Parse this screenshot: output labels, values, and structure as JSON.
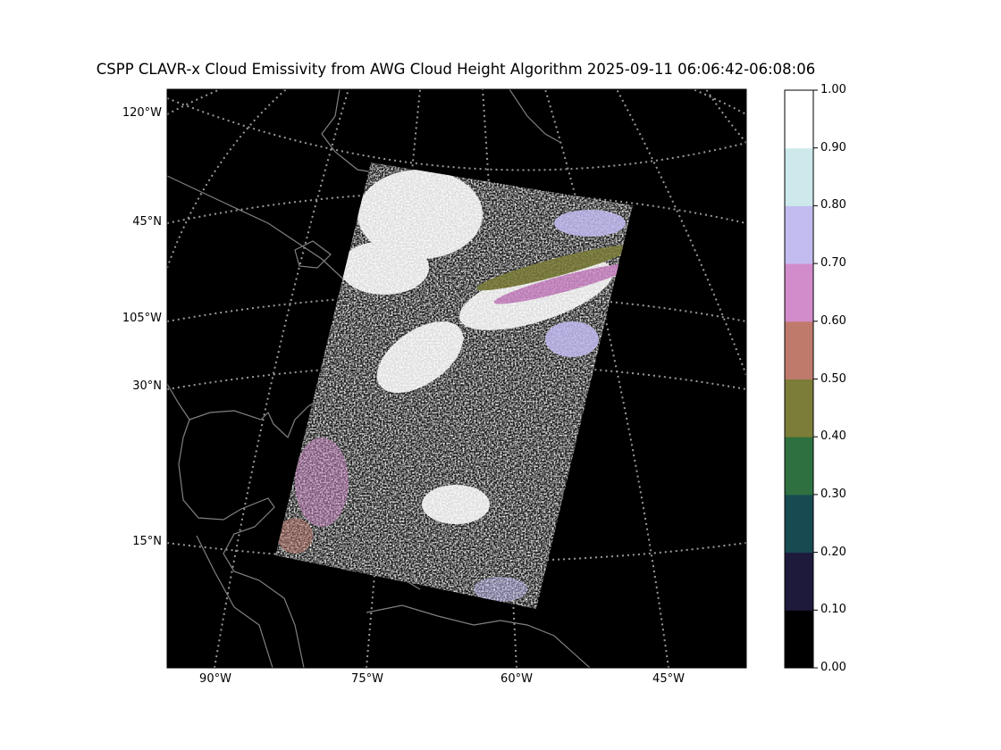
{
  "title": "CSPP CLAVR-x Cloud Emissivity from AWG Cloud Height Algorithm 2025-09-11 06:06:42-06:08:06",
  "map": {
    "lat_labels": [
      "120°W",
      "45°N",
      "105°W",
      "30°N",
      "15°N"
    ],
    "lon_labels": [
      "90°W",
      "75°W",
      "60°W",
      "45°W"
    ],
    "background_color": "#000000",
    "coastline_color": "#808080",
    "gridline_color": "#9a9a9a"
  },
  "colorbar": {
    "ticks": [
      "0.00",
      "0.10",
      "0.20",
      "0.30",
      "0.40",
      "0.50",
      "0.60",
      "0.70",
      "0.80",
      "0.90",
      "1.00"
    ],
    "colors": [
      "#000000",
      "#1e1a3c",
      "#184a52",
      "#2e7040",
      "#7c7d38",
      "#c07a6c",
      "#d28ccb",
      "#c2bcf1",
      "#cde9ec",
      "#ffffff"
    ]
  }
}
